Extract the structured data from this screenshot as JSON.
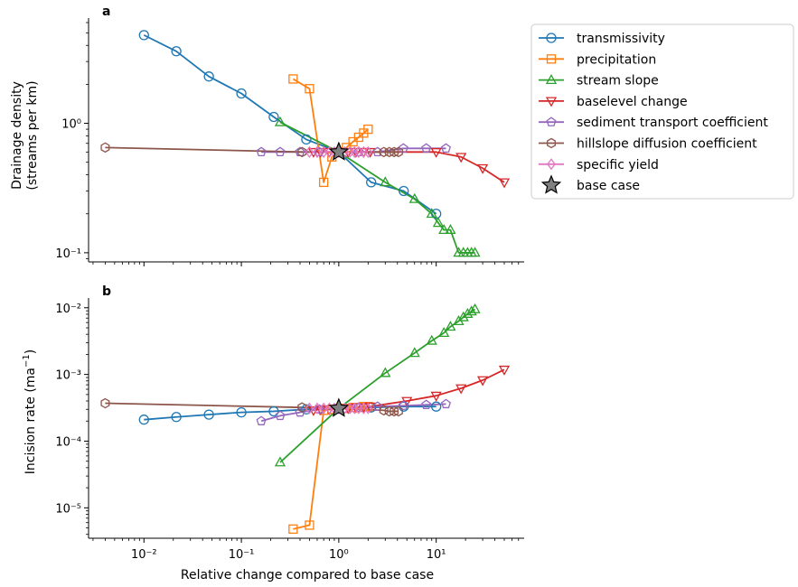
{
  "figure": {
    "xlabel": "Relative change compared to base case",
    "legend": {
      "placement": "outside-right-top",
      "entries": [
        {
          "series": "transmissivity",
          "label": "transmissivity"
        },
        {
          "series": "precipitation",
          "label": "precipitation"
        },
        {
          "series": "stream slope",
          "label": "stream slope"
        },
        {
          "series": "baselevel change",
          "label": "baselevel change"
        },
        {
          "series": "sediment transport coefficient",
          "label": "sediment transport coefficient"
        },
        {
          "series": "hillslope diffusion coefficient",
          "label": "hillslope diffusion coefficient"
        },
        {
          "series": "specific yield",
          "label": "specific yield"
        },
        {
          "series": "base case",
          "label": "base case"
        }
      ]
    }
  },
  "styles": {
    "transmissivity": {
      "color": "#1f77b4",
      "marker": "circle"
    },
    "precipitation": {
      "color": "#ff7f0e",
      "marker": "square"
    },
    "stream slope": {
      "color": "#2ca02c",
      "marker": "triangle-up"
    },
    "baselevel change": {
      "color": "#d62728",
      "marker": "triangle-down"
    },
    "sediment transport coefficient": {
      "color": "#9467bd",
      "marker": "pentagon"
    },
    "hillslope diffusion coefficient": {
      "color": "#8c564b",
      "marker": "hexagon"
    },
    "specific yield": {
      "color": "#e377c2",
      "marker": "diamond"
    },
    "base case": {
      "color": "#808080",
      "edge": "#000000",
      "marker": "star"
    }
  },
  "chart_data": [
    {
      "type": "line",
      "panel_label": "a",
      "ylabel_lines": [
        "Drainage density",
        "(streams per km)"
      ],
      "xscale": "log",
      "yscale": "log",
      "xlim": [
        0.0027,
        80
      ],
      "ylim": [
        0.085,
        6.5
      ],
      "xticks": [
        {
          "value": 0.01,
          "label": ""
        },
        {
          "value": 0.1,
          "label": ""
        },
        {
          "value": 1,
          "label": ""
        },
        {
          "value": 10,
          "label": ""
        }
      ],
      "yticks": [
        {
          "value": 0.1,
          "label": "10⁻¹"
        },
        {
          "value": 1,
          "label": "10⁰"
        }
      ],
      "series": [
        {
          "name": "transmissivity",
          "x": [
            0.01,
            0.0215,
            0.0464,
            0.1,
            0.215,
            0.464,
            1,
            2.15,
            4.64,
            10
          ],
          "y": [
            4.8,
            3.6,
            2.3,
            1.7,
            1.12,
            0.75,
            0.6,
            0.35,
            0.3,
            0.2
          ]
        },
        {
          "name": "precipitation",
          "x": [
            0.34,
            0.5,
            0.7,
            0.85,
            1,
            1.2,
            1.4,
            1.6,
            1.8,
            2.0
          ],
          "y": [
            2.2,
            1.85,
            0.35,
            0.55,
            0.6,
            0.65,
            0.72,
            0.78,
            0.84,
            0.9
          ]
        },
        {
          "name": "stream slope",
          "x": [
            0.25,
            1,
            3,
            6,
            9,
            10.5,
            12,
            14,
            17,
            19,
            21,
            23,
            25
          ],
          "y": [
            1.02,
            0.6,
            0.35,
            0.26,
            0.2,
            0.17,
            0.15,
            0.15,
            0.1,
            0.1,
            0.1,
            0.1,
            0.1
          ]
        },
        {
          "name": "baselevel change",
          "x": [
            0.55,
            0.65,
            0.8,
            1,
            1.25,
            1.5,
            1.8,
            2.1,
            10,
            18,
            30,
            50
          ],
          "y": [
            0.6,
            0.6,
            0.6,
            0.6,
            0.6,
            0.6,
            0.6,
            0.6,
            0.6,
            0.55,
            0.45,
            0.35
          ]
        },
        {
          "name": "sediment transport coefficient",
          "x": [
            0.16,
            0.25,
            0.4,
            0.63,
            1,
            1.6,
            2.5,
            4.6,
            7.9,
            12.6
          ],
          "y": [
            0.6,
            0.6,
            0.6,
            0.6,
            0.6,
            0.6,
            0.6,
            0.64,
            0.64,
            0.64
          ]
        },
        {
          "name": "hillslope diffusion coefficient",
          "x": [
            0.004,
            0.42,
            1,
            2.9,
            3.3,
            3.7,
            4.1
          ],
          "y": [
            0.65,
            0.6,
            0.6,
            0.6,
            0.6,
            0.6,
            0.6
          ]
        },
        {
          "name": "specific yield",
          "x": [
            0.5,
            0.6,
            0.7,
            0.8,
            0.9,
            1,
            1.15,
            1.3,
            1.45,
            1.6,
            1.8,
            2.0
          ],
          "y": [
            0.6,
            0.6,
            0.6,
            0.6,
            0.6,
            0.6,
            0.6,
            0.6,
            0.6,
            0.6,
            0.6,
            0.6
          ]
        },
        {
          "name": "base case",
          "x": [
            1
          ],
          "y": [
            0.6
          ]
        }
      ]
    },
    {
      "type": "line",
      "panel_label": "b",
      "ylabel_main": "Incision rate (ma",
      "ylabel_sup": "−1",
      "ylabel_end": ")",
      "xscale": "log",
      "yscale": "log",
      "xlim": [
        0.0027,
        80
      ],
      "ylim": [
        3.5e-06,
        0.014
      ],
      "xticks": [
        {
          "value": 0.01,
          "label": "10⁻²"
        },
        {
          "value": 0.1,
          "label": "10⁻¹"
        },
        {
          "value": 1,
          "label": "10⁰"
        },
        {
          "value": 10,
          "label": "10¹"
        }
      ],
      "yticks": [
        {
          "value": 1e-05,
          "label": "10⁻⁵"
        },
        {
          "value": 0.0001,
          "label": "10⁻⁴"
        },
        {
          "value": 0.001,
          "label": "10⁻³"
        },
        {
          "value": 0.01,
          "label": "10⁻²"
        }
      ],
      "series": [
        {
          "name": "transmissivity",
          "x": [
            0.01,
            0.0215,
            0.0464,
            0.1,
            0.215,
            0.464,
            1,
            2.15,
            4.64,
            10
          ],
          "y": [
            0.00021,
            0.00023,
            0.00025,
            0.00027,
            0.00028,
            0.0003,
            0.00031,
            0.00032,
            0.00033,
            0.00033
          ]
        },
        {
          "name": "precipitation",
          "x": [
            0.34,
            0.5,
            0.7,
            0.85,
            1,
            1.2,
            1.4,
            1.6,
            1.8,
            2.0
          ],
          "y": [
            4.8e-06,
            5.5e-06,
            0.00029,
            0.0003,
            0.00031,
            0.00031,
            0.00032,
            0.00032,
            0.00033,
            0.00033
          ]
        },
        {
          "name": "stream slope",
          "x": [
            0.25,
            1,
            3,
            6,
            9,
            12,
            14,
            17,
            19,
            21,
            23,
            25
          ],
          "y": [
            4.8e-05,
            0.00031,
            0.00105,
            0.0021,
            0.0032,
            0.0042,
            0.0052,
            0.0063,
            0.0072,
            0.0081,
            0.0088,
            0.0095
          ]
        },
        {
          "name": "baselevel change",
          "x": [
            0.55,
            0.65,
            0.8,
            1,
            1.25,
            1.5,
            1.8,
            2.1,
            5,
            10,
            18,
            30,
            50
          ],
          "y": [
            0.00029,
            0.0003,
            0.0003,
            0.00031,
            0.00031,
            0.00032,
            0.00032,
            0.00033,
            0.0004,
            0.00048,
            0.00062,
            0.00082,
            0.00118
          ]
        },
        {
          "name": "sediment transport coefficient",
          "x": [
            0.16,
            0.25,
            0.4,
            0.63,
            1,
            1.6,
            2.5,
            4.6,
            7.9,
            12.6
          ],
          "y": [
            0.0002,
            0.00024,
            0.00027,
            0.0003,
            0.00031,
            0.00032,
            0.00033,
            0.00034,
            0.00035,
            0.00036
          ]
        },
        {
          "name": "hillslope diffusion coefficient",
          "x": [
            0.004,
            0.42,
            1,
            2.9,
            3.3,
            3.7,
            4.1
          ],
          "y": [
            0.00037,
            0.00032,
            0.00031,
            0.00029,
            0.00028,
            0.00028,
            0.00028
          ]
        },
        {
          "name": "specific yield",
          "x": [
            0.5,
            0.6,
            0.7,
            0.8,
            0.9,
            1,
            1.15,
            1.3,
            1.45,
            1.6,
            1.8,
            2.0
          ],
          "y": [
            0.00031,
            0.00031,
            0.00031,
            0.00031,
            0.00031,
            0.00031,
            0.00031,
            0.00031,
            0.00031,
            0.00031,
            0.00031,
            0.00031
          ]
        },
        {
          "name": "base case",
          "x": [
            1
          ],
          "y": [
            0.00031
          ]
        }
      ]
    }
  ]
}
